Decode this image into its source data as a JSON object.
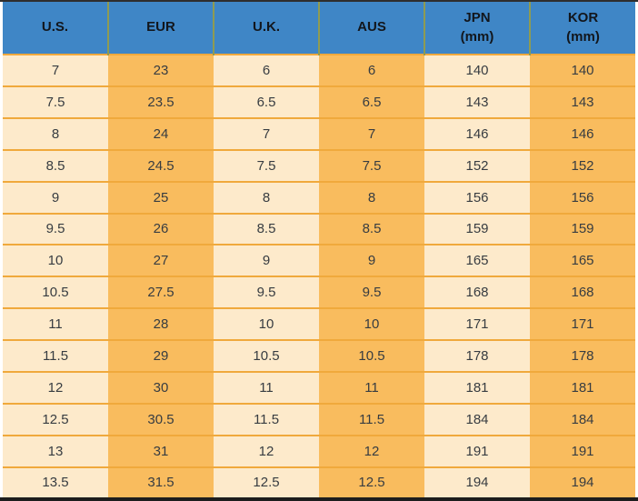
{
  "chart_data": {
    "type": "table",
    "description": "Shoe size conversion table",
    "columns": [
      {
        "label": "U.S.",
        "sub": ""
      },
      {
        "label": "EUR",
        "sub": ""
      },
      {
        "label": "U.K.",
        "sub": ""
      },
      {
        "label": "AUS",
        "sub": ""
      },
      {
        "label": "JPN",
        "sub": "(mm)"
      },
      {
        "label": "KOR",
        "sub": "(mm)"
      }
    ],
    "rows": [
      [
        "7",
        "23",
        "6",
        "6",
        "140",
        "140"
      ],
      [
        "7.5",
        "23.5",
        "6.5",
        "6.5",
        "143",
        "143"
      ],
      [
        "8",
        "24",
        "7",
        "7",
        "146",
        "146"
      ],
      [
        "8.5",
        "24.5",
        "7.5",
        "7.5",
        "152",
        "152"
      ],
      [
        "9",
        "25",
        "8",
        "8",
        "156",
        "156"
      ],
      [
        "9.5",
        "26",
        "8.5",
        "8.5",
        "159",
        "159"
      ],
      [
        "10",
        "27",
        "9",
        "9",
        "165",
        "165"
      ],
      [
        "10.5",
        "27.5",
        "9.5",
        "9.5",
        "168",
        "168"
      ],
      [
        "11",
        "28",
        "10",
        "10",
        "171",
        "171"
      ],
      [
        "11.5",
        "29",
        "10.5",
        "10.5",
        "178",
        "178"
      ],
      [
        "12",
        "30",
        "11",
        "11",
        "181",
        "181"
      ],
      [
        "12.5",
        "30.5",
        "11.5",
        "11.5",
        "184",
        "184"
      ],
      [
        "13",
        "31",
        "12",
        "12",
        "191",
        "191"
      ],
      [
        "13.5",
        "31.5",
        "12.5",
        "12.5",
        "194",
        "194"
      ]
    ]
  },
  "colors": {
    "header_bg": "#3f86c6",
    "header_text": "#12161c",
    "col_light": "#fdeacb",
    "col_dark": "#f9bc5e",
    "row_border": "#f0a93c",
    "header_divider": "#8f9b52",
    "cell_text": "#373c41",
    "top_bar": "#2e2e2e",
    "bottom_bar": "#1d1d1d"
  }
}
